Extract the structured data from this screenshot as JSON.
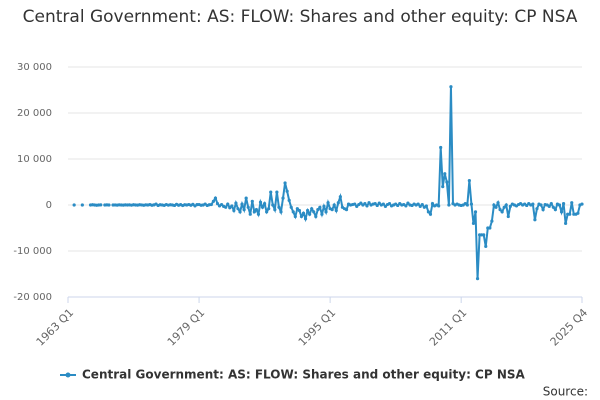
{
  "chart_data": {
    "type": "line",
    "title": "Central Government: AS: FLOW: Shares and other equity: CP NSA",
    "source_label": "Source:",
    "categories": [
      "1963 Q1",
      null,
      null,
      null,
      null,
      null,
      null,
      null,
      null,
      null,
      null,
      null,
      null,
      null,
      null,
      null,
      null,
      null,
      null,
      null,
      null,
      null,
      null,
      null,
      null,
      null,
      null,
      null,
      null,
      null,
      null,
      null,
      null,
      null,
      null,
      null,
      null,
      null,
      null,
      null,
      null,
      null,
      null,
      null,
      null,
      null,
      null,
      null,
      null,
      null,
      null,
      null,
      null,
      null,
      null,
      null,
      null,
      null,
      null,
      null,
      null,
      null,
      null,
      null,
      "1979 Q1",
      null,
      null,
      null,
      null,
      null,
      null,
      null,
      null,
      null,
      null,
      null,
      null,
      null,
      null,
      null,
      null,
      null,
      null,
      null,
      null,
      null,
      null,
      null,
      null,
      null,
      null,
      null,
      null,
      null,
      null,
      null,
      null,
      null,
      null,
      null,
      null,
      null,
      null,
      null,
      null,
      null,
      null,
      null,
      null,
      null,
      null,
      null,
      null,
      null,
      null,
      null,
      null,
      null,
      null,
      null,
      null,
      null,
      null,
      null,
      null,
      null,
      null,
      null,
      "1995 Q1",
      null,
      null,
      null,
      null,
      null,
      null,
      null,
      null,
      null,
      null,
      null,
      null,
      null,
      null,
      null,
      null,
      null,
      null,
      null,
      null,
      null,
      null,
      null,
      null,
      null,
      null,
      null,
      null,
      null,
      null,
      null,
      null,
      null,
      null,
      null,
      null,
      null,
      null,
      null,
      null,
      null,
      null,
      null,
      null,
      null,
      null,
      null,
      null,
      null,
      null,
      null,
      null,
      null,
      null,
      null,
      null,
      null,
      null,
      null,
      null,
      null,
      null,
      null,
      "2011 Q1",
      null,
      null,
      null,
      null,
      null,
      null,
      null,
      null,
      null,
      null,
      null,
      null,
      null,
      null,
      null,
      null,
      null,
      null,
      null,
      null,
      null,
      null,
      null,
      null,
      null,
      null,
      null,
      null,
      null,
      null,
      null,
      null,
      null,
      null,
      null,
      null,
      null,
      null,
      null,
      null,
      null,
      null,
      null,
      null,
      null,
      null,
      null,
      null,
      null,
      null,
      null,
      null,
      null,
      null,
      null,
      null,
      null,
      null,
      "2025 Q4"
    ],
    "series": [
      {
        "name": "Central Government: AS: FLOW: Shares and other equity: CP NSA",
        "color": "#2b8cc4",
        "values": [
          null,
          null,
          null,
          0,
          null,
          null,
          null,
          0,
          null,
          null,
          null,
          0,
          50,
          0,
          -50,
          0,
          30,
          null,
          0,
          20,
          0,
          null,
          0,
          10,
          -30,
          40,
          0,
          -20,
          30,
          0,
          20,
          -40,
          60,
          0,
          -30,
          50,
          10,
          -60,
          40,
          0,
          80,
          -50,
          30,
          200,
          -100,
          60,
          0,
          -80,
          100,
          -40,
          50,
          0,
          -100,
          150,
          -50,
          80,
          -120,
          60,
          0,
          100,
          -60,
          150,
          -200,
          80,
          100,
          -50,
          0,
          200,
          -100,
          50,
          100,
          800,
          1500,
          300,
          -200,
          100,
          -300,
          -500,
          200,
          -600,
          -200,
          -1200,
          400,
          -800,
          -1500,
          200,
          -1000,
          1500,
          -500,
          -2000,
          800,
          -1500,
          -1000,
          -2000,
          600,
          -500,
          300,
          -1500,
          -800,
          2800,
          0,
          -1000,
          2800,
          -500,
          -1500,
          1500,
          4800,
          3000,
          1000,
          -500,
          -1500,
          -2500,
          -800,
          -1200,
          -2500,
          -1800,
          -3000,
          -1200,
          -2000,
          -800,
          -1500,
          -2500,
          -1000,
          -500,
          -2000,
          -300,
          -1500,
          500,
          -800,
          -1000,
          0,
          -1200,
          500,
          1800,
          -500,
          -800,
          -1000,
          200,
          0,
          100,
          200,
          -300,
          100,
          400,
          0,
          300,
          -200,
          500,
          0,
          200,
          300,
          -100,
          400,
          0,
          200,
          -300,
          100,
          300,
          -200,
          0,
          200,
          -100,
          300,
          0,
          100,
          -200,
          400,
          0,
          -100,
          200,
          0,
          200,
          -300,
          100,
          -500,
          -200,
          -1500,
          -2000,
          300,
          -200,
          0,
          -200,
          12500,
          4000,
          6800,
          5000,
          0,
          25700,
          300,
          0,
          200,
          0,
          -100,
          0,
          300,
          0,
          5300,
          200,
          -4000,
          -1500,
          -16000,
          -6500,
          -6500,
          -6500,
          -9000,
          -5000,
          -5000,
          -3500,
          0,
          -500,
          500,
          -1000,
          -1500,
          -500,
          0,
          -2500,
          -300,
          200,
          0,
          -200,
          100,
          300,
          0,
          200,
          -100,
          300,
          0,
          200,
          -3200,
          -800,
          200,
          0,
          -1000,
          100,
          0,
          -300,
          300,
          -500,
          -1000,
          200,
          0,
          -1500,
          300,
          -4000,
          -2000,
          -2000,
          500,
          -2000,
          -2000,
          -1800,
          0,
          200
        ]
      }
    ],
    "ylim": [
      -20000,
      30000
    ],
    "yticks": [
      {
        "value": -20000,
        "label": "-20 000"
      },
      {
        "value": -10000,
        "label": "-10 000"
      },
      0,
      {
        "value": 10000,
        "label": "10 000"
      },
      {
        "value": 20000,
        "label": "20 000"
      },
      {
        "value": 30000,
        "label": "30 000"
      }
    ],
    "grid": true
  }
}
